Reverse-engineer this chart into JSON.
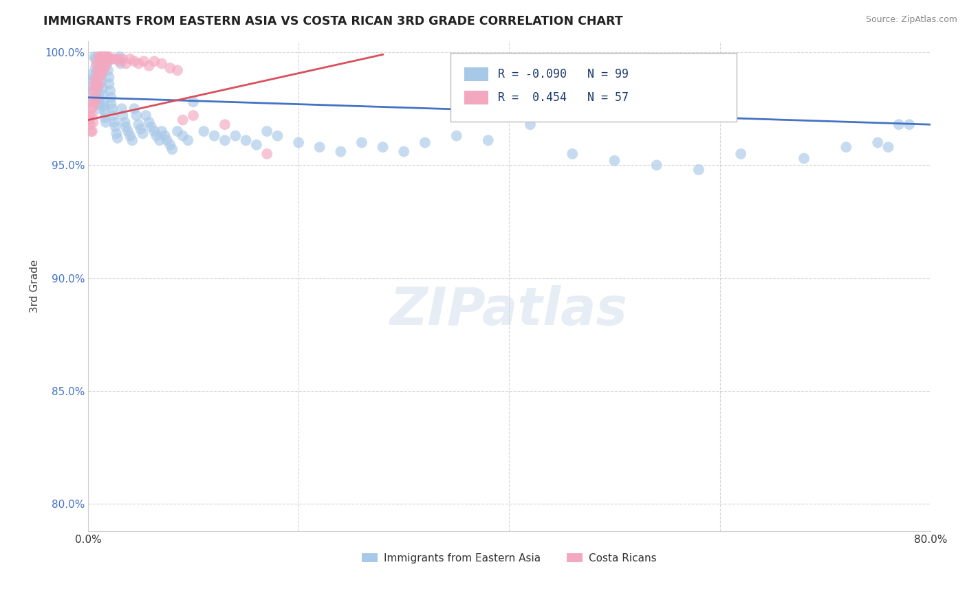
{
  "title": "IMMIGRANTS FROM EASTERN ASIA VS COSTA RICAN 3RD GRADE CORRELATION CHART",
  "source": "Source: ZipAtlas.com",
  "ylabel": "3rd Grade",
  "xlim": [
    0.0,
    0.8
  ],
  "ylim": [
    0.788,
    1.005
  ],
  "yticks": [
    0.8,
    0.85,
    0.9,
    0.95,
    1.0
  ],
  "ytick_labels": [
    "80.0%",
    "85.0%",
    "90.0%",
    "95.0%",
    "100.0%"
  ],
  "xticks": [
    0.0,
    0.2,
    0.4,
    0.6,
    0.8
  ],
  "xtick_labels": [
    "0.0%",
    "",
    "",
    "",
    "80.0%"
  ],
  "blue_color": "#a8c8e8",
  "pink_color": "#f4a8c0",
  "blue_line_color": "#4472c4",
  "pink_line_color": "#d94f5c",
  "R_blue": -0.09,
  "N_blue": 99,
  "R_pink": 0.454,
  "N_pink": 57,
  "legend_label_blue": "Immigrants from Eastern Asia",
  "legend_label_pink": "Costa Ricans",
  "watermark": "ZIPatlas",
  "blue_scatter_x": [
    0.002,
    0.003,
    0.004,
    0.005,
    0.005,
    0.006,
    0.007,
    0.007,
    0.008,
    0.008,
    0.009,
    0.01,
    0.01,
    0.01,
    0.011,
    0.011,
    0.012,
    0.012,
    0.013,
    0.013,
    0.014,
    0.014,
    0.015,
    0.015,
    0.016,
    0.016,
    0.017,
    0.018,
    0.018,
    0.019,
    0.02,
    0.02,
    0.021,
    0.022,
    0.022,
    0.023,
    0.024,
    0.025,
    0.026,
    0.027,
    0.028,
    0.03,
    0.031,
    0.032,
    0.033,
    0.035,
    0.036,
    0.038,
    0.04,
    0.042,
    0.044,
    0.046,
    0.048,
    0.05,
    0.052,
    0.055,
    0.058,
    0.06,
    0.063,
    0.065,
    0.068,
    0.07,
    0.073,
    0.075,
    0.078,
    0.08,
    0.085,
    0.09,
    0.095,
    0.1,
    0.11,
    0.12,
    0.13,
    0.14,
    0.15,
    0.16,
    0.17,
    0.18,
    0.2,
    0.22,
    0.24,
    0.26,
    0.28,
    0.3,
    0.32,
    0.35,
    0.38,
    0.42,
    0.46,
    0.5,
    0.54,
    0.58,
    0.62,
    0.68,
    0.72,
    0.75,
    0.76,
    0.77,
    0.78
  ],
  "blue_scatter_y": [
    0.99,
    0.988,
    0.985,
    0.983,
    0.98,
    0.998,
    0.997,
    0.993,
    0.991,
    0.987,
    0.984,
    0.981,
    0.979,
    0.977,
    0.975,
    0.998,
    0.996,
    0.993,
    0.99,
    0.987,
    0.984,
    0.981,
    0.978,
    0.976,
    0.974,
    0.971,
    0.969,
    0.998,
    0.995,
    0.992,
    0.989,
    0.986,
    0.983,
    0.98,
    0.977,
    0.975,
    0.972,
    0.969,
    0.967,
    0.964,
    0.962,
    0.998,
    0.995,
    0.975,
    0.972,
    0.969,
    0.967,
    0.965,
    0.963,
    0.961,
    0.975,
    0.972,
    0.968,
    0.966,
    0.964,
    0.972,
    0.969,
    0.967,
    0.965,
    0.963,
    0.961,
    0.965,
    0.963,
    0.961,
    0.959,
    0.957,
    0.965,
    0.963,
    0.961,
    0.978,
    0.965,
    0.963,
    0.961,
    0.963,
    0.961,
    0.959,
    0.965,
    0.963,
    0.96,
    0.958,
    0.956,
    0.96,
    0.958,
    0.956,
    0.96,
    0.963,
    0.961,
    0.968,
    0.955,
    0.952,
    0.95,
    0.948,
    0.955,
    0.953,
    0.958,
    0.96,
    0.958,
    0.968,
    0.968
  ],
  "pink_scatter_x": [
    0.001,
    0.002,
    0.002,
    0.003,
    0.003,
    0.004,
    0.004,
    0.004,
    0.005,
    0.005,
    0.005,
    0.006,
    0.006,
    0.007,
    0.007,
    0.008,
    0.008,
    0.008,
    0.009,
    0.009,
    0.01,
    0.01,
    0.01,
    0.011,
    0.011,
    0.012,
    0.012,
    0.013,
    0.013,
    0.014,
    0.015,
    0.015,
    0.016,
    0.016,
    0.017,
    0.018,
    0.019,
    0.02,
    0.022,
    0.025,
    0.028,
    0.03,
    0.033,
    0.036,
    0.04,
    0.044,
    0.048,
    0.053,
    0.058,
    0.063,
    0.07,
    0.078,
    0.085,
    0.09,
    0.1,
    0.13,
    0.17
  ],
  "pink_scatter_y": [
    0.97,
    0.972,
    0.968,
    0.975,
    0.965,
    0.978,
    0.972,
    0.965,
    0.983,
    0.976,
    0.969,
    0.985,
    0.978,
    0.988,
    0.98,
    0.995,
    0.988,
    0.98,
    0.992,
    0.985,
    0.998,
    0.992,
    0.985,
    0.996,
    0.988,
    0.998,
    0.99,
    0.998,
    0.991,
    0.996,
    0.998,
    0.993,
    0.998,
    0.993,
    0.996,
    0.998,
    0.996,
    0.998,
    0.997,
    0.997,
    0.997,
    0.996,
    0.997,
    0.995,
    0.997,
    0.996,
    0.995,
    0.996,
    0.994,
    0.996,
    0.995,
    0.993,
    0.992,
    0.97,
    0.972,
    0.968,
    0.955
  ]
}
